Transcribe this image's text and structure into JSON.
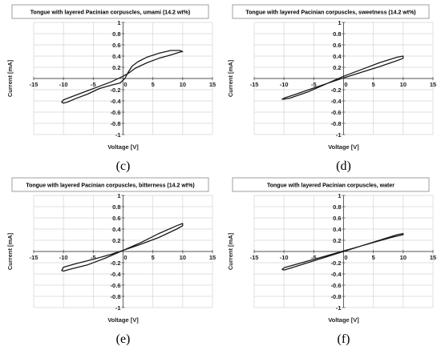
{
  "chart_data": [
    {
      "panel": "(c)",
      "type": "line",
      "title": "Tongue with layered Pacinian corpuscles, umami (14.2 wt%)",
      "xlabel": "Voltage  [V]",
      "ylabel": "Current  [mA]",
      "xlim": [
        -15,
        15
      ],
      "ylim": [
        -1,
        1
      ],
      "xticks": [
        -15,
        -10,
        -5,
        0,
        5,
        10,
        15
      ],
      "yticks": [
        -1,
        -0.8,
        -0.6,
        -0.4,
        -0.2,
        0,
        0.2,
        0.4,
        0.6,
        0.8,
        1
      ],
      "grid": true,
      "series": [
        {
          "values_xy": [
            [
              10,
              0.48
            ],
            [
              9.5,
              0.5
            ],
            [
              8,
              0.5
            ],
            [
              6,
              0.45
            ],
            [
              4,
              0.38
            ],
            [
              2.5,
              0.3
            ],
            [
              1.5,
              0.22
            ],
            [
              0.8,
              0.1
            ],
            [
              0.3,
              0
            ],
            [
              -0.5,
              -0.08
            ],
            [
              -2,
              -0.12
            ],
            [
              -4,
              -0.18
            ],
            [
              -6,
              -0.28
            ],
            [
              -8,
              -0.36
            ],
            [
              -9.3,
              -0.42
            ],
            [
              -10,
              -0.44
            ],
            [
              -10.3,
              -0.42
            ],
            [
              -10,
              -0.38
            ],
            [
              -8,
              -0.3
            ],
            [
              -6,
              -0.22
            ],
            [
              -4,
              -0.14
            ],
            [
              -2,
              -0.06
            ],
            [
              0,
              0.04
            ],
            [
              1,
              0.1
            ],
            [
              2,
              0.18
            ],
            [
              4,
              0.28
            ],
            [
              6,
              0.36
            ],
            [
              8,
              0.42
            ],
            [
              9.5,
              0.47
            ],
            [
              10,
              0.48
            ]
          ]
        }
      ]
    },
    {
      "panel": "(d)",
      "type": "line",
      "title": "Tongue with layered Pacinian corpuscles, sweetness (14.2 wt%)",
      "xlabel": "Voltage  [V]",
      "ylabel": "Current  [mA]",
      "xlim": [
        -15,
        15
      ],
      "ylim": [
        -1,
        1
      ],
      "xticks": [
        -15,
        -10,
        -5,
        0,
        5,
        10,
        15
      ],
      "yticks": [
        -1,
        -0.8,
        -0.6,
        -0.4,
        -0.2,
        0,
        0.2,
        0.4,
        0.6,
        0.8,
        1
      ],
      "grid": true,
      "series": [
        {
          "values_xy": [
            [
              10,
              0.4
            ],
            [
              9,
              0.38
            ],
            [
              6,
              0.28
            ],
            [
              3,
              0.16
            ],
            [
              0,
              0.04
            ],
            [
              -3,
              -0.1
            ],
            [
              -6,
              -0.24
            ],
            [
              -9,
              -0.35
            ],
            [
              -10,
              -0.37
            ],
            [
              -10.3,
              -0.37
            ],
            [
              -10,
              -0.35
            ],
            [
              -8,
              -0.28
            ],
            [
              -5,
              -0.17
            ],
            [
              -2,
              -0.06
            ],
            [
              0,
              0.01
            ],
            [
              3,
              0.11
            ],
            [
              6,
              0.21
            ],
            [
              9,
              0.32
            ],
            [
              10,
              0.36
            ],
            [
              10,
              0.4
            ]
          ]
        }
      ]
    },
    {
      "panel": "(e)",
      "type": "line",
      "title": "Tongue with layered Pacinian corpuscles, bitterness (14.2 wt%)",
      "xlabel": "Voltage  [V]",
      "ylabel": "Current  [mA]",
      "xlim": [
        -15,
        15
      ],
      "ylim": [
        -1,
        1
      ],
      "xticks": [
        -15,
        -10,
        -5,
        0,
        5,
        10,
        15
      ],
      "yticks": [
        -1,
        -0.8,
        -0.6,
        -0.4,
        -0.2,
        0,
        0.2,
        0.4,
        0.6,
        0.8,
        1
      ],
      "grid": true,
      "series": [
        {
          "values_xy": [
            [
              10,
              0.5
            ],
            [
              9,
              0.46
            ],
            [
              6,
              0.32
            ],
            [
              3,
              0.16
            ],
            [
              0,
              0.02
            ],
            [
              -3,
              -0.12
            ],
            [
              -6,
              -0.24
            ],
            [
              -9,
              -0.32
            ],
            [
              -10,
              -0.35
            ],
            [
              -10.3,
              -0.34
            ],
            [
              -10,
              -0.28
            ],
            [
              -8,
              -0.22
            ],
            [
              -5,
              -0.14
            ],
            [
              -2,
              -0.05
            ],
            [
              0,
              0.02
            ],
            [
              3,
              0.13
            ],
            [
              6,
              0.25
            ],
            [
              9,
              0.4
            ],
            [
              10,
              0.46
            ],
            [
              10,
              0.5
            ]
          ]
        }
      ]
    },
    {
      "panel": "(f)",
      "type": "line",
      "title": "Tongue with layered Pacinian corpuscles, water",
      "xlabel": "Voltage  [V]",
      "ylabel": "Current  [mA]",
      "xlim": [
        -15,
        15
      ],
      "ylim": [
        -1,
        1
      ],
      "xticks": [
        -15,
        -10,
        -5,
        0,
        5,
        10,
        15
      ],
      "yticks": [
        -1,
        -0.8,
        -0.6,
        -0.4,
        -0.2,
        0,
        0.2,
        0.4,
        0.6,
        0.8,
        1
      ],
      "grid": true,
      "series": [
        {
          "values_xy": [
            [
              10,
              0.32
            ],
            [
              9,
              0.3
            ],
            [
              6,
              0.2
            ],
            [
              3,
              0.1
            ],
            [
              0,
              0
            ],
            [
              -3,
              -0.1
            ],
            [
              -6,
              -0.2
            ],
            [
              -9,
              -0.3
            ],
            [
              -10,
              -0.33
            ],
            [
              -10.3,
              -0.32
            ],
            [
              -10,
              -0.29
            ],
            [
              -7,
              -0.2
            ],
            [
              -4,
              -0.11
            ],
            [
              -1,
              -0.02
            ],
            [
              2,
              0.07
            ],
            [
              5,
              0.16
            ],
            [
              8,
              0.25
            ],
            [
              10,
              0.3
            ],
            [
              10,
              0.32
            ]
          ]
        }
      ]
    }
  ],
  "style": {
    "line_color": "#1a1a1a",
    "grid_color": "#d4d4d4",
    "axis_color": "#555555",
    "frame_color": "#888888"
  }
}
